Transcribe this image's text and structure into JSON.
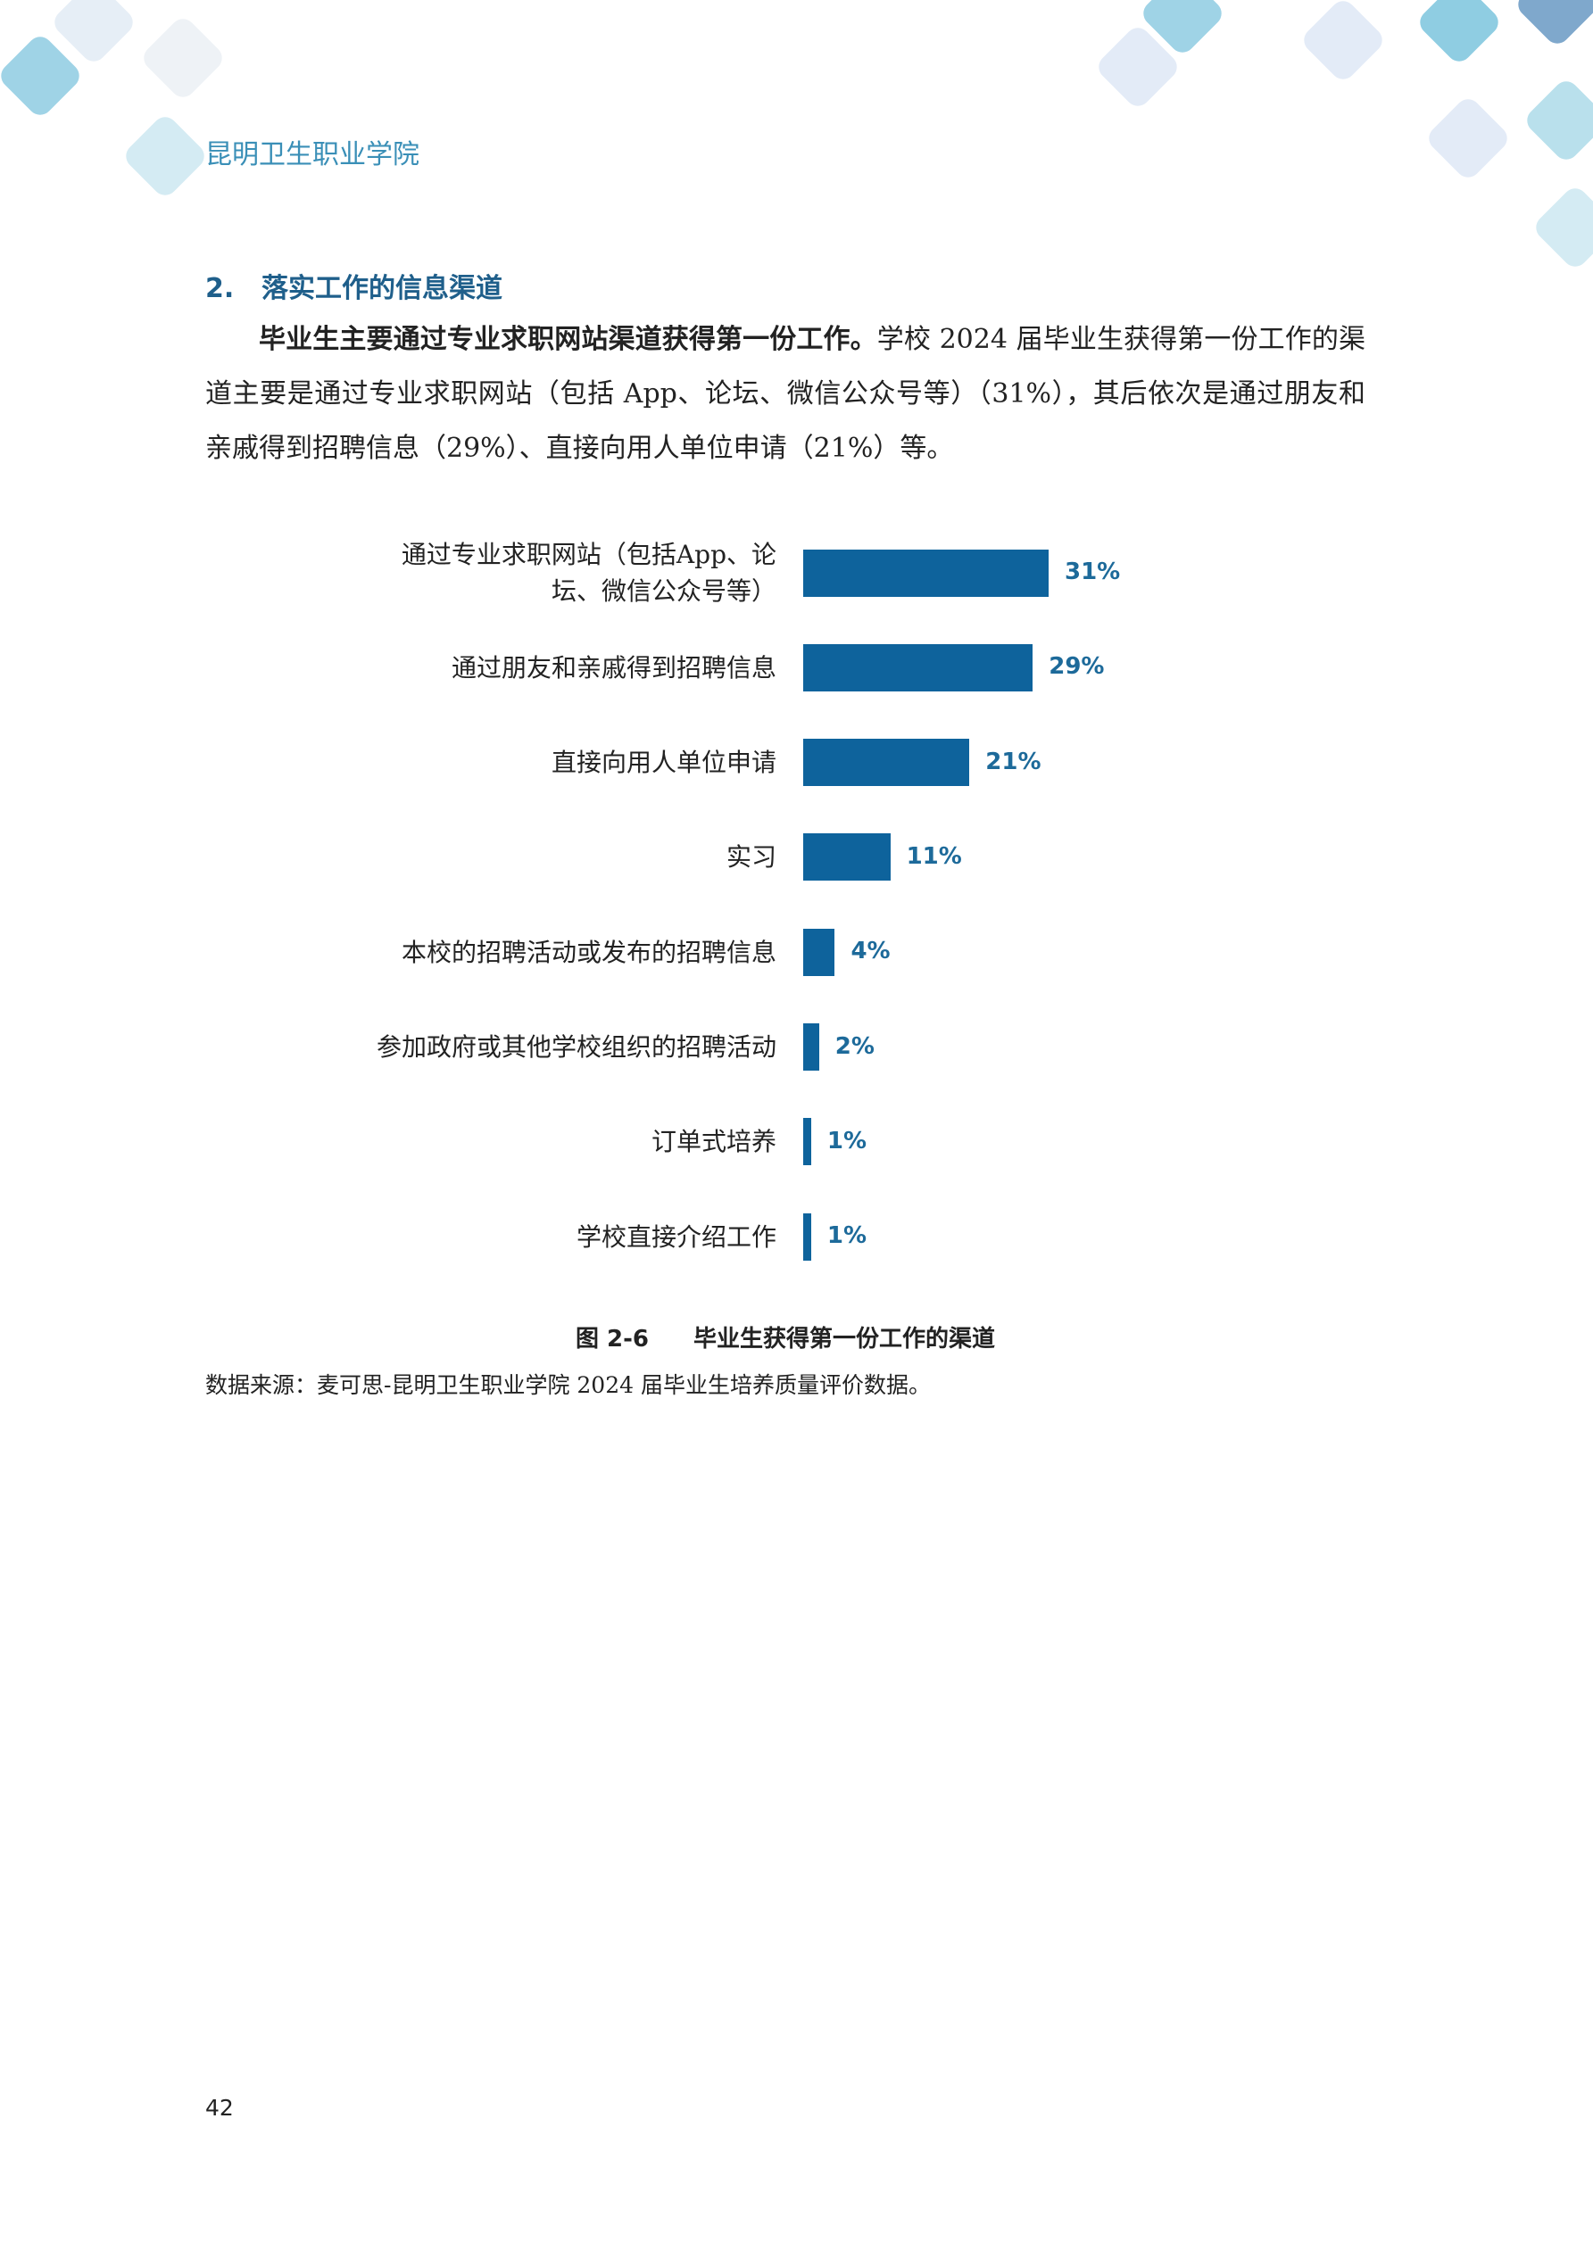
{
  "header": {
    "title": "昆明卫生职业学院"
  },
  "section": {
    "number": "2.",
    "title": "落实工作的信息渠道"
  },
  "paragraph": {
    "lead": "毕业生主要通过专业求职网站渠道获得第一份工作。",
    "body": "学校 2024 届毕业生获得第一份工作的渠道主要是通过专业求职网站（包括 App、论坛、微信公众号等）（31%），其后依次是通过朋友和亲戚得到招聘信息（29%）、直接向用人单位申请（21%）等。"
  },
  "chart_data": {
    "type": "bar",
    "orientation": "horizontal",
    "color": "#0e639c",
    "label_color": "#1d6a9a",
    "categories": [
      "通过专业求职网站（包括App、论坛、微信公众号等）",
      "通过朋友和亲戚得到招聘信息",
      "直接向用人单位申请",
      "实习",
      "本校的招聘活动或发布的招聘信息",
      "参加政府或其他学校组织的招聘活动",
      "订单式培养",
      "学校直接介绍工作"
    ],
    "values": [
      31,
      29,
      21,
      11,
      4,
      2,
      1,
      1
    ],
    "value_labels": [
      "31%",
      "29%",
      "21%",
      "11%",
      "4%",
      "2%",
      "1%",
      "1%"
    ]
  },
  "figure": {
    "number": "图 2-6",
    "caption": "毕业生获得第一份工作的渠道"
  },
  "source": "数据来源：麦可思-昆明卫生职业学院 2024 届毕业生培养质量评价数据。",
  "page_number": "42"
}
